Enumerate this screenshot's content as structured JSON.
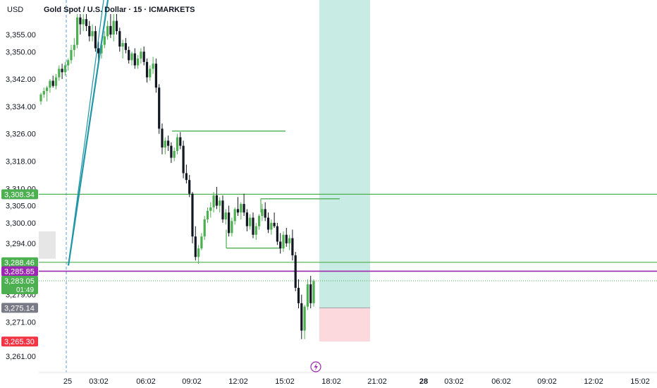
{
  "header": {
    "currency": "USD",
    "symbol_title": "Gold Spot / U.S. Dollar · 15 · ICMARKETS"
  },
  "colors": {
    "up": "#26a69a",
    "up_candle": "#4caf50",
    "down": "#131722",
    "level_green": "#4caf50",
    "level_purple": "#9c27b0",
    "last_price": "#4caf50",
    "stop_red": "#f23645",
    "entry_gray": "#787b86",
    "tp_zone": "#c8ebe3",
    "sl_zone": "#fcd9dc",
    "trendline": "#2196a6",
    "session_box": "#e6e6e6",
    "vline": "#5b9bd5"
  },
  "chart_data": {
    "type": "candlestick",
    "instrument": "Gold Spot / U.S. Dollar",
    "timeframe": "15",
    "broker": "ICMARKETS",
    "y_axis": {
      "ticks": [
        3355.0,
        3350.0,
        3342.0,
        3334.0,
        3326.0,
        3318.0,
        3310.0,
        3305.0,
        3300.0,
        3294.0,
        3288.0,
        3279.0,
        3271.0,
        3265.0,
        3261.0
      ],
      "ylim": [
        3259.0,
        3361.0
      ]
    },
    "x_axis": {
      "labels": [
        "25",
        "03:02",
        "06:02",
        "09:02",
        "12:02",
        "15:02",
        "18:02",
        "21:02",
        "28",
        "03:02",
        "06:02",
        "09:02",
        "12:02",
        "15:02"
      ],
      "bold": [
        false,
        false,
        false,
        false,
        false,
        false,
        false,
        false,
        true,
        false,
        false,
        false,
        false,
        false
      ]
    },
    "price_labels": [
      {
        "text": "3,308.34",
        "value": 3308.34,
        "kind": "level_green"
      },
      {
        "text": "3,288.46",
        "value": 3288.46,
        "kind": "level_green"
      },
      {
        "text": "3,285.85",
        "value": 3285.85,
        "kind": "level_purple"
      },
      {
        "text": "3,283.05",
        "value": 3283.05,
        "kind": "last_price",
        "countdown": "01:49"
      },
      {
        "text": "3,275.14",
        "value": 3275.14,
        "kind": "entry_gray"
      },
      {
        "text": "3,265.30",
        "value": 3265.3,
        "kind": "stop_red"
      }
    ],
    "position": {
      "type": "long",
      "entry": 3275.14,
      "take_profit": 3361.0,
      "stop_loss": 3265.3
    },
    "candles": [
      [
        3335.5,
        3338.0,
        3334.5,
        3337.5
      ],
      [
        3337.5,
        3339.5,
        3336.5,
        3338.5
      ],
      [
        3338.5,
        3340.0,
        3335.5,
        3339.5
      ],
      [
        3339.5,
        3342.0,
        3338.0,
        3341.5
      ],
      [
        3341.5,
        3343.0,
        3339.5,
        3340.0
      ],
      [
        3340.0,
        3343.5,
        3339.0,
        3342.5
      ],
      [
        3342.5,
        3346.0,
        3341.5,
        3345.0
      ],
      [
        3345.0,
        3346.5,
        3342.0,
        3344.0
      ],
      [
        3344.0,
        3347.0,
        3343.0,
        3346.0
      ],
      [
        3346.0,
        3348.0,
        3344.5,
        3347.5
      ],
      [
        3347.5,
        3352.0,
        3346.5,
        3350.5
      ],
      [
        3350.5,
        3354.0,
        3348.5,
        3352.0
      ],
      [
        3352.0,
        3361.0,
        3351.0,
        3360.0
      ],
      [
        3360.0,
        3361.0,
        3355.0,
        3358.0
      ],
      [
        3358.0,
        3361.0,
        3356.0,
        3359.5
      ],
      [
        3359.5,
        3361.0,
        3356.0,
        3357.5
      ],
      [
        3357.5,
        3359.0,
        3353.0,
        3354.5
      ],
      [
        3354.5,
        3358.0,
        3353.0,
        3356.0
      ],
      [
        3356.0,
        3357.5,
        3350.0,
        3351.0
      ],
      [
        3351.0,
        3353.0,
        3347.5,
        3349.5
      ],
      [
        3349.5,
        3353.0,
        3348.0,
        3352.0
      ],
      [
        3352.0,
        3356.0,
        3351.0,
        3354.5
      ],
      [
        3354.5,
        3359.0,
        3353.5,
        3357.5
      ],
      [
        3357.5,
        3361.0,
        3354.0,
        3355.0
      ],
      [
        3355.0,
        3361.0,
        3353.0,
        3359.0
      ],
      [
        3359.0,
        3361.0,
        3355.0,
        3356.0
      ],
      [
        3356.0,
        3357.0,
        3350.0,
        3351.5
      ],
      [
        3351.5,
        3353.5,
        3348.0,
        3352.5
      ],
      [
        3352.5,
        3354.0,
        3349.5,
        3350.5
      ],
      [
        3350.5,
        3351.5,
        3346.5,
        3347.5
      ],
      [
        3347.5,
        3350.0,
        3346.0,
        3349.5
      ],
      [
        3349.5,
        3351.0,
        3345.0,
        3346.0
      ],
      [
        3346.0,
        3349.0,
        3345.0,
        3348.0
      ],
      [
        3348.0,
        3351.0,
        3346.5,
        3350.0
      ],
      [
        3350.0,
        3351.5,
        3346.0,
        3347.0
      ],
      [
        3347.0,
        3348.0,
        3341.0,
        3342.5
      ],
      [
        3342.5,
        3346.0,
        3341.5,
        3345.0
      ],
      [
        3345.0,
        3348.5,
        3343.5,
        3346.5
      ],
      [
        3346.5,
        3348.0,
        3338.0,
        3339.5
      ],
      [
        3339.5,
        3340.5,
        3326.0,
        3327.5
      ],
      [
        3327.5,
        3329.0,
        3320.0,
        3322.0
      ],
      [
        3322.0,
        3325.0,
        3320.0,
        3324.0
      ],
      [
        3324.0,
        3325.5,
        3321.0,
        3322.5
      ],
      [
        3322.5,
        3323.5,
        3317.5,
        3319.0
      ],
      [
        3319.0,
        3322.0,
        3318.0,
        3321.0
      ],
      [
        3321.0,
        3326.0,
        3320.0,
        3325.0
      ],
      [
        3325.0,
        3326.5,
        3321.5,
        3322.5
      ],
      [
        3322.5,
        3324.0,
        3313.0,
        3314.5
      ],
      [
        3314.5,
        3317.0,
        3311.5,
        3312.5
      ],
      [
        3312.5,
        3314.0,
        3307.5,
        3308.5
      ],
      [
        3308.5,
        3309.0,
        3294.0,
        3296.0
      ],
      [
        3296.0,
        3299.0,
        3289.0,
        3290.0
      ],
      [
        3290.0,
        3293.5,
        3288.0,
        3292.5
      ],
      [
        3292.5,
        3297.0,
        3292.0,
        3296.0
      ],
      [
        3296.0,
        3302.0,
        3295.0,
        3301.0
      ],
      [
        3301.0,
        3304.5,
        3300.0,
        3303.5
      ],
      [
        3303.5,
        3306.0,
        3301.5,
        3304.5
      ],
      [
        3304.5,
        3309.0,
        3303.0,
        3308.0
      ],
      [
        3308.0,
        3310.5,
        3304.0,
        3305.0
      ],
      [
        3305.0,
        3307.5,
        3303.0,
        3306.5
      ],
      [
        3306.5,
        3308.0,
        3300.0,
        3301.0
      ],
      [
        3301.0,
        3304.0,
        3299.5,
        3303.0
      ],
      [
        3303.0,
        3305.0,
        3296.0,
        3297.0
      ],
      [
        3297.0,
        3301.5,
        3296.0,
        3300.5
      ],
      [
        3300.5,
        3304.5,
        3299.5,
        3304.0
      ],
      [
        3304.0,
        3307.5,
        3302.0,
        3303.0
      ],
      [
        3303.0,
        3306.0,
        3301.0,
        3305.5
      ],
      [
        3305.5,
        3308.5,
        3302.0,
        3303.0
      ],
      [
        3303.0,
        3304.0,
        3297.5,
        3299.0
      ],
      [
        3299.0,
        3302.5,
        3298.0,
        3301.5
      ],
      [
        3301.5,
        3303.0,
        3295.5,
        3296.5
      ],
      [
        3296.5,
        3300.0,
        3295.0,
        3299.0
      ],
      [
        3299.0,
        3302.5,
        3298.0,
        3302.0
      ],
      [
        3302.0,
        3305.5,
        3300.5,
        3304.0
      ],
      [
        3304.0,
        3306.0,
        3300.5,
        3301.5
      ],
      [
        3301.5,
        3303.0,
        3297.0,
        3298.0
      ],
      [
        3298.0,
        3301.0,
        3296.5,
        3300.0
      ],
      [
        3300.0,
        3303.0,
        3298.5,
        3299.0
      ],
      [
        3299.0,
        3300.0,
        3293.5,
        3294.5
      ],
      [
        3294.5,
        3297.0,
        3291.0,
        3292.5
      ],
      [
        3292.5,
        3297.5,
        3291.5,
        3296.5
      ],
      [
        3296.5,
        3298.5,
        3293.0,
        3294.0
      ],
      [
        3294.0,
        3296.5,
        3292.0,
        3295.5
      ],
      [
        3295.5,
        3298.0,
        3289.0,
        3290.5
      ],
      [
        3290.5,
        3291.5,
        3280.0,
        3281.0
      ],
      [
        3281.0,
        3283.5,
        3275.0,
        3276.5
      ],
      [
        3276.5,
        3279.0,
        3266.0,
        3268.5
      ],
      [
        3268.5,
        3276.0,
        3266.0,
        3275.5
      ],
      [
        3275.5,
        3283.5,
        3274.5,
        3282.0
      ],
      [
        3282.0,
        3284.5,
        3275.0,
        3276.5
      ],
      [
        3276.5,
        3283.5,
        3275.5,
        3283.0
      ]
    ]
  }
}
